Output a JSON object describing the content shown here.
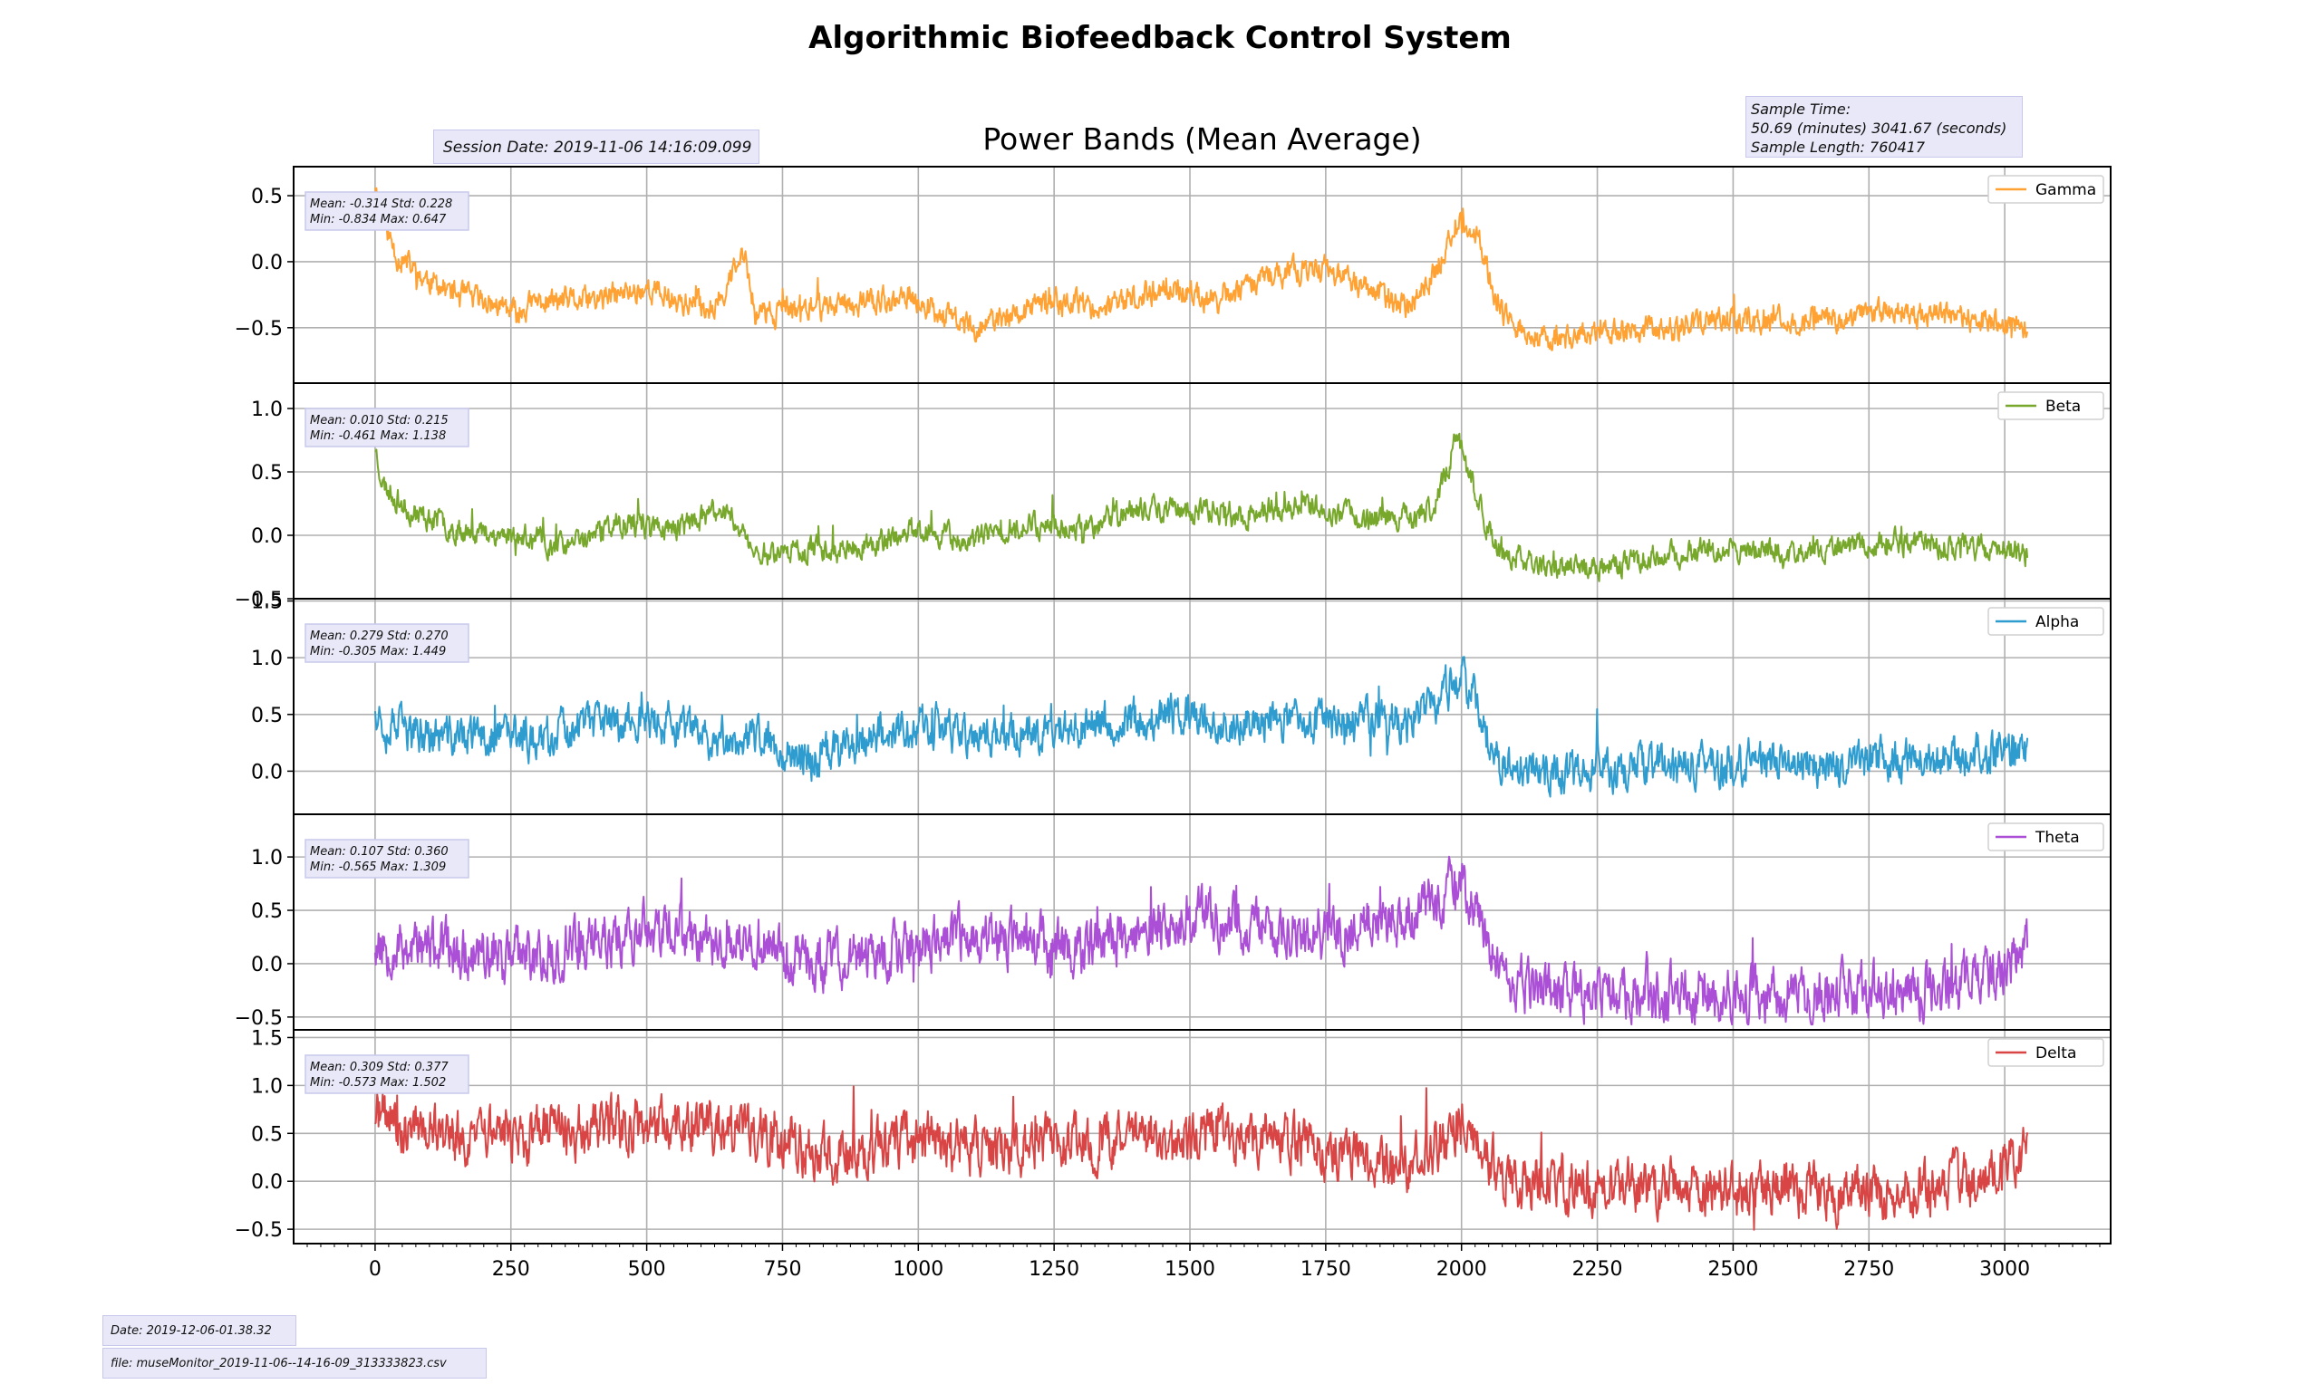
{
  "suptitle": "Algorithmic Biofeedback Control System",
  "title": "Power Bands (Mean Average)",
  "session_date": "Session Date: 2019-11-06 14:16:09.099",
  "sample_info": {
    "line1": "Sample Time:",
    "line2": "50.69 (minutes) 3041.67 (seconds)",
    "line3": "Sample Length: 760417"
  },
  "footer": {
    "date": "Date: 2019-12-06-01.38.32",
    "file": "file: museMonitor_2019-11-06--14-16-09_313333823.csv"
  },
  "chart_data": [
    {
      "type": "line",
      "series": [
        {
          "name": "Gamma",
          "color": "#ffa233"
        }
      ],
      "stats": {
        "line1": "Mean: -0.314 Std: 0.228",
        "line2": "Min: -0.834 Max: 0.647"
      },
      "ylim": [
        -0.92,
        0.72
      ],
      "yticks": [
        -0.5,
        0.0,
        0.5
      ],
      "xlim": [
        -150,
        3195
      ],
      "x_range": [
        0,
        3041.67
      ],
      "anchors": [
        [
          0,
          0.6
        ],
        [
          15,
          0.3
        ],
        [
          40,
          0.05
        ],
        [
          80,
          -0.1
        ],
        [
          150,
          -0.25
        ],
        [
          200,
          -0.3
        ],
        [
          260,
          -0.4
        ],
        [
          300,
          -0.3
        ],
        [
          400,
          -0.3
        ],
        [
          500,
          -0.2
        ],
        [
          560,
          -0.3
        ],
        [
          620,
          -0.35
        ],
        [
          650,
          -0.15
        ],
        [
          680,
          0.05
        ],
        [
          700,
          -0.4
        ],
        [
          800,
          -0.35
        ],
        [
          900,
          -0.3
        ],
        [
          1000,
          -0.3
        ],
        [
          1100,
          -0.5
        ],
        [
          1150,
          -0.45
        ],
        [
          1250,
          -0.3
        ],
        [
          1350,
          -0.35
        ],
        [
          1450,
          -0.2
        ],
        [
          1550,
          -0.3
        ],
        [
          1650,
          -0.1
        ],
        [
          1750,
          -0.05
        ],
        [
          1850,
          -0.25
        ],
        [
          1900,
          -0.35
        ],
        [
          1950,
          -0.1
        ],
        [
          1990,
          0.3
        ],
        [
          2030,
          0.2
        ],
        [
          2070,
          -0.4
        ],
        [
          2150,
          -0.6
        ],
        [
          2250,
          -0.55
        ],
        [
          2400,
          -0.5
        ],
        [
          2500,
          -0.45
        ],
        [
          2600,
          -0.45
        ],
        [
          2700,
          -0.42
        ],
        [
          2800,
          -0.38
        ],
        [
          2900,
          -0.42
        ],
        [
          3000,
          -0.48
        ],
        [
          3040,
          -0.52
        ]
      ],
      "noise": 0.085,
      "seed": 11
    },
    {
      "type": "line",
      "series": [
        {
          "name": "Beta",
          "color": "#77a82c"
        }
      ],
      "stats": {
        "line1": "Mean: 0.010 Std: 0.215",
        "line2": "Min: -0.461 Max: 1.138"
      },
      "ylim": [
        -0.5,
        1.2
      ],
      "yticks": [
        -0.5,
        0.0,
        0.5,
        1.0
      ],
      "xlim": [
        -150,
        3195
      ],
      "x_range": [
        0,
        3041.67
      ],
      "anchors": [
        [
          0,
          0.7
        ],
        [
          15,
          0.4
        ],
        [
          60,
          0.2
        ],
        [
          150,
          0.05
        ],
        [
          250,
          0.0
        ],
        [
          350,
          -0.1
        ],
        [
          450,
          0.1
        ],
        [
          550,
          0.05
        ],
        [
          650,
          0.2
        ],
        [
          700,
          -0.15
        ],
        [
          800,
          -0.1
        ],
        [
          900,
          -0.1
        ],
        [
          1000,
          0.05
        ],
        [
          1100,
          -0.05
        ],
        [
          1200,
          0.1
        ],
        [
          1300,
          0.05
        ],
        [
          1400,
          0.2
        ],
        [
          1500,
          0.2
        ],
        [
          1600,
          0.15
        ],
        [
          1700,
          0.25
        ],
        [
          1800,
          0.15
        ],
        [
          1900,
          0.15
        ],
        [
          1950,
          0.2
        ],
        [
          1990,
          0.75
        ],
        [
          2030,
          0.3
        ],
        [
          2060,
          -0.1
        ],
        [
          2150,
          -0.25
        ],
        [
          2250,
          -0.25
        ],
        [
          2400,
          -0.15
        ],
        [
          2500,
          -0.1
        ],
        [
          2600,
          -0.15
        ],
        [
          2700,
          -0.1
        ],
        [
          2800,
          -0.05
        ],
        [
          2900,
          -0.1
        ],
        [
          3000,
          -0.1
        ],
        [
          3040,
          -0.15
        ]
      ],
      "noise": 0.085,
      "seed": 23
    },
    {
      "type": "line",
      "series": [
        {
          "name": "Alpha",
          "color": "#2f9cd0"
        }
      ],
      "stats": {
        "line1": "Mean: 0.279 Std: 0.270",
        "line2": "Min: -0.305 Max: 1.449"
      },
      "ylim": [
        -0.38,
        1.52
      ],
      "yticks": [
        0.0,
        0.5,
        1.0,
        1.5
      ],
      "xlim": [
        -150,
        3195
      ],
      "x_range": [
        0,
        3041.67
      ],
      "anchors": [
        [
          0,
          0.6
        ],
        [
          20,
          0.4
        ],
        [
          100,
          0.3
        ],
        [
          200,
          0.3
        ],
        [
          300,
          0.3
        ],
        [
          400,
          0.4
        ],
        [
          500,
          0.45
        ],
        [
          600,
          0.3
        ],
        [
          700,
          0.3
        ],
        [
          800,
          0.1
        ],
        [
          900,
          0.3
        ],
        [
          1000,
          0.4
        ],
        [
          1100,
          0.3
        ],
        [
          1200,
          0.35
        ],
        [
          1300,
          0.4
        ],
        [
          1400,
          0.45
        ],
        [
          1500,
          0.5
        ],
        [
          1600,
          0.4
        ],
        [
          1700,
          0.45
        ],
        [
          1800,
          0.45
        ],
        [
          1900,
          0.45
        ],
        [
          1950,
          0.6
        ],
        [
          2000,
          0.9
        ],
        [
          2040,
          0.4
        ],
        [
          2070,
          0.05
        ],
        [
          2150,
          0.0
        ],
        [
          2300,
          0.0
        ],
        [
          2400,
          0.05
        ],
        [
          2500,
          0.05
        ],
        [
          2600,
          0.05
        ],
        [
          2700,
          0.05
        ],
        [
          2800,
          0.1
        ],
        [
          2900,
          0.1
        ],
        [
          3000,
          0.2
        ],
        [
          3040,
          0.2
        ]
      ],
      "noise": 0.16,
      "seed": 37
    },
    {
      "type": "line",
      "series": [
        {
          "name": "Theta",
          "color": "#aa4fd6"
        }
      ],
      "stats": {
        "line1": "Mean: 0.107 Std: 0.360",
        "line2": "Min: -0.565 Max: 1.309"
      },
      "ylim": [
        -0.62,
        1.4
      ],
      "yticks": [
        -0.5,
        0.0,
        0.5,
        1.0
      ],
      "xlim": [
        -150,
        3195
      ],
      "x_range": [
        0,
        3041.67
      ],
      "anchors": [
        [
          0,
          0.2
        ],
        [
          100,
          0.15
        ],
        [
          200,
          0.1
        ],
        [
          300,
          0.05
        ],
        [
          400,
          0.2
        ],
        [
          500,
          0.3
        ],
        [
          600,
          0.25
        ],
        [
          700,
          0.15
        ],
        [
          800,
          0.0
        ],
        [
          900,
          0.05
        ],
        [
          1000,
          0.2
        ],
        [
          1100,
          0.25
        ],
        [
          1200,
          0.2
        ],
        [
          1300,
          0.15
        ],
        [
          1400,
          0.3
        ],
        [
          1500,
          0.45
        ],
        [
          1600,
          0.35
        ],
        [
          1700,
          0.3
        ],
        [
          1800,
          0.35
        ],
        [
          1900,
          0.45
        ],
        [
          1960,
          0.6
        ],
        [
          2000,
          0.75
        ],
        [
          2040,
          0.4
        ],
        [
          2070,
          -0.15
        ],
        [
          2150,
          -0.25
        ],
        [
          2300,
          -0.28
        ],
        [
          2500,
          -0.3
        ],
        [
          2600,
          -0.28
        ],
        [
          2700,
          -0.28
        ],
        [
          2800,
          -0.25
        ],
        [
          2900,
          -0.2
        ],
        [
          3000,
          -0.05
        ],
        [
          3040,
          0.05
        ]
      ],
      "noise": 0.22,
      "seed": 53
    },
    {
      "type": "line",
      "series": [
        {
          "name": "Delta",
          "color": "#d94545"
        }
      ],
      "stats": {
        "line1": "Mean: 0.309 Std: 0.377",
        "line2": "Min: -0.573 Max: 1.502"
      },
      "ylim": [
        -0.65,
        1.58
      ],
      "yticks": [
        -0.5,
        0.0,
        0.5,
        1.0,
        1.5
      ],
      "xlim": [
        -150,
        3195
      ],
      "x_range": [
        0,
        3041.67
      ],
      "anchors": [
        [
          0,
          0.7
        ],
        [
          100,
          0.5
        ],
        [
          200,
          0.45
        ],
        [
          300,
          0.5
        ],
        [
          400,
          0.55
        ],
        [
          500,
          0.6
        ],
        [
          600,
          0.55
        ],
        [
          700,
          0.5
        ],
        [
          800,
          0.3
        ],
        [
          900,
          0.35
        ],
        [
          1000,
          0.45
        ],
        [
          1100,
          0.35
        ],
        [
          1200,
          0.35
        ],
        [
          1300,
          0.4
        ],
        [
          1400,
          0.45
        ],
        [
          1500,
          0.45
        ],
        [
          1600,
          0.5
        ],
        [
          1700,
          0.4
        ],
        [
          1800,
          0.3
        ],
        [
          1900,
          0.2
        ],
        [
          1950,
          0.35
        ],
        [
          2000,
          0.55
        ],
        [
          2040,
          0.4
        ],
        [
          2070,
          0.05
        ],
        [
          2150,
          0.0
        ],
        [
          2300,
          -0.05
        ],
        [
          2500,
          -0.05
        ],
        [
          2600,
          -0.1
        ],
        [
          2700,
          -0.1
        ],
        [
          2800,
          -0.1
        ],
        [
          2900,
          -0.05
        ],
        [
          3000,
          0.1
        ],
        [
          3040,
          0.25
        ]
      ],
      "noise": 0.24,
      "seed": 71
    }
  ],
  "xticks": [
    0,
    250,
    500,
    750,
    1000,
    1250,
    1500,
    1750,
    2000,
    2250,
    2500,
    2750,
    3000
  ],
  "colors": {
    "grid": "#b0b0b0",
    "axis": "#000000",
    "note_bg": "#e8e8f8",
    "note_border": "#c8c8ec"
  }
}
